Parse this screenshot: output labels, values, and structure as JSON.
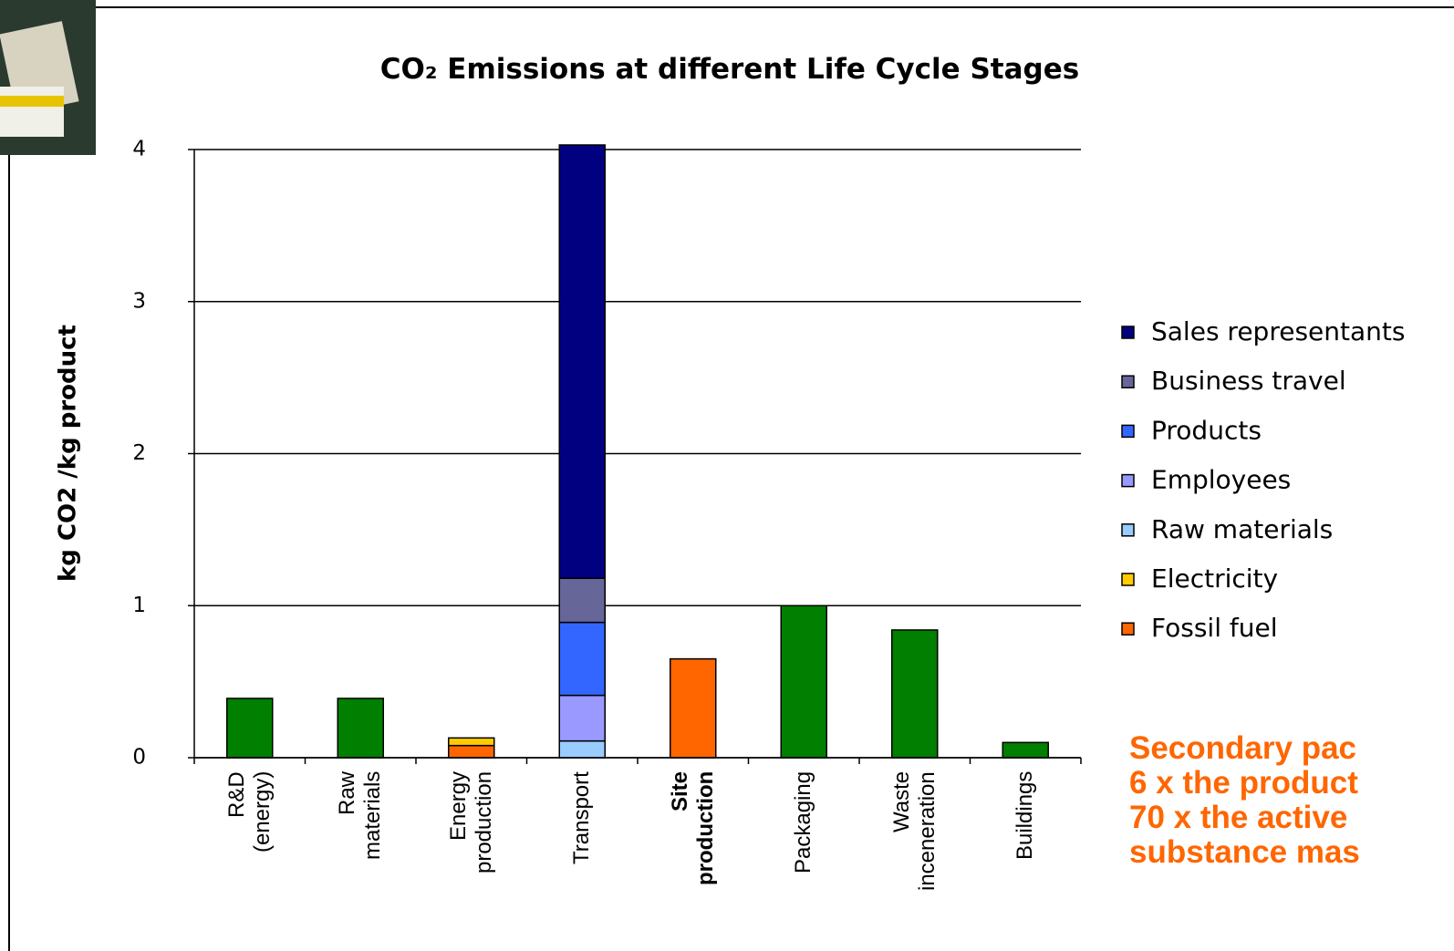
{
  "chart_data": {
    "type": "stacked_bar",
    "title": "CO₂ Emissions at different Life Cycle Stages",
    "y_label": "kg CO2 /kg product",
    "categories": [
      "R&D\n(energy)",
      "Raw\nmaterials",
      "Energy\nproduction",
      "Transport",
      "Site\nproduction",
      "Packaging",
      "Waste\ninceneration",
      "Buildings"
    ],
    "category_bold": [
      false,
      false,
      false,
      false,
      true,
      false,
      false,
      false
    ],
    "series": [
      {
        "color": "#007f00",
        "values": [
          0.39,
          0.39,
          null,
          null,
          null,
          1.0,
          0.84,
          0.1
        ]
      },
      {
        "name": "Fossil fuel",
        "color": "#ff6600",
        "values": [
          null,
          null,
          0.08,
          null,
          0.65,
          null,
          null,
          null
        ]
      },
      {
        "name": "Electricity",
        "color": "#ffcc00",
        "values": [
          null,
          null,
          0.05,
          null,
          null,
          null,
          null,
          null
        ]
      },
      {
        "name": "Raw materials",
        "color": "#99ccff",
        "values": [
          null,
          null,
          null,
          0.11,
          null,
          null,
          null,
          null
        ]
      },
      {
        "name": "Employees",
        "color": "#9999ff",
        "values": [
          null,
          null,
          null,
          0.3,
          null,
          null,
          null,
          null
        ]
      },
      {
        "name": "Products",
        "color": "#3366ff",
        "values": [
          null,
          null,
          null,
          0.48,
          null,
          null,
          null,
          null
        ]
      },
      {
        "name": "Business travel",
        "color": "#666699",
        "values": [
          null,
          null,
          null,
          0.29,
          null,
          null,
          null,
          null
        ]
      },
      {
        "name": "Sales representants",
        "color": "#000080",
        "values": [
          null,
          null,
          null,
          2.85,
          null,
          null,
          null,
          null
        ]
      }
    ],
    "ylim": [
      0,
      4
    ],
    "yticks": [
      0,
      1,
      2,
      3,
      4
    ],
    "grid": true,
    "annotation": "Secondary pac\n6 x the product\n70 x the active\nsubstance mas",
    "annotation_color": "#ff6600"
  }
}
